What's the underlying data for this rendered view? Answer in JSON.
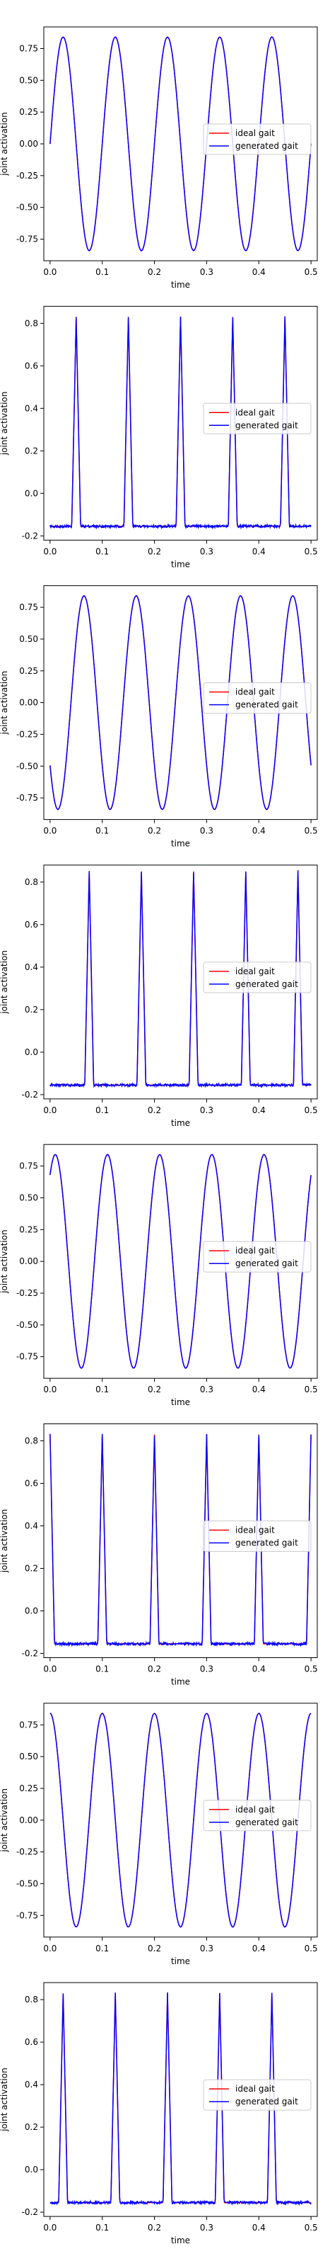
{
  "figure": {
    "xlabel": "time",
    "ylabel": "joint activation"
  },
  "legend": {
    "ideal": "ideal gait",
    "generated": "generated gait"
  },
  "colors": {
    "ideal": "#ff0000",
    "generated": "#0000ff"
  },
  "chart_data": [
    {
      "type": "line",
      "wave": "sine",
      "phase": 0.0,
      "amp": 0.84,
      "title": "",
      "xlabel": "time",
      "ylabel": "joint activation",
      "xlim": [
        -0.012,
        0.512
      ],
      "ylim": [
        -0.92,
        0.92
      ],
      "xticks": [
        "0.0",
        "0.1",
        "0.2",
        "0.3",
        "0.4",
        "0.5"
      ],
      "yticks": [
        "0.75",
        "0.50",
        "0.25",
        "0.00",
        "-0.25",
        "-0.50",
        "-0.75"
      ],
      "legend_position": "center-right",
      "series": [
        {
          "name": "ideal gait"
        },
        {
          "name": "generated gait"
        }
      ]
    },
    {
      "type": "line",
      "wave": "pulse",
      "centers": [
        0.05,
        0.15,
        0.25,
        0.35,
        0.45
      ],
      "peak": 0.83,
      "base": -0.155,
      "title": "",
      "xlabel": "time",
      "ylabel": "joint activation",
      "xlim": [
        -0.012,
        0.512
      ],
      "ylim": [
        -0.22,
        0.88
      ],
      "xticks": [
        "0.0",
        "0.1",
        "0.2",
        "0.3",
        "0.4",
        "0.5"
      ],
      "yticks": [
        "0.8",
        "0.6",
        "0.4",
        "0.2",
        "0.0",
        "-0.2"
      ],
      "legend_position": "center-right",
      "series": [
        {
          "name": "ideal gait"
        },
        {
          "name": "generated gait"
        }
      ]
    },
    {
      "type": "line",
      "wave": "sine",
      "phase": 0.04,
      "amp": 0.84,
      "title": "",
      "xlabel": "time",
      "ylabel": "joint activation",
      "xlim": [
        -0.012,
        0.512
      ],
      "ylim": [
        -0.92,
        0.92
      ],
      "xticks": [
        "0.0",
        "0.1",
        "0.2",
        "0.3",
        "0.4",
        "0.5"
      ],
      "yticks": [
        "0.75",
        "0.50",
        "0.25",
        "0.00",
        "-0.25",
        "-0.50",
        "-0.75"
      ],
      "legend_position": "center-right",
      "series": [
        {
          "name": "ideal gait"
        },
        {
          "name": "generated gait"
        }
      ]
    },
    {
      "type": "line",
      "wave": "pulse",
      "centers": [
        0.075,
        0.175,
        0.275,
        0.375,
        0.475
      ],
      "peak": 0.85,
      "base": -0.155,
      "title": "",
      "xlabel": "time",
      "ylabel": "joint activation",
      "xlim": [
        -0.012,
        0.512
      ],
      "ylim": [
        -0.22,
        0.88
      ],
      "xticks": [
        "0.0",
        "0.1",
        "0.2",
        "0.3",
        "0.4",
        "0.5"
      ],
      "yticks": [
        "0.8",
        "0.6",
        "0.4",
        "0.2",
        "0.0",
        "-0.2"
      ],
      "legend_position": "center-right",
      "series": [
        {
          "name": "ideal gait"
        },
        {
          "name": "generated gait"
        }
      ]
    },
    {
      "type": "line",
      "wave": "sine",
      "phase": -0.015,
      "amp": 0.84,
      "title": "",
      "xlabel": "time",
      "ylabel": "joint activation",
      "xlim": [
        -0.012,
        0.512
      ],
      "ylim": [
        -0.92,
        0.92
      ],
      "xticks": [
        "0.0",
        "0.1",
        "0.2",
        "0.3",
        "0.4",
        "0.5"
      ],
      "yticks": [
        "0.75",
        "0.50",
        "0.25",
        "0.00",
        "-0.25",
        "-0.50",
        "-0.75"
      ],
      "legend_position": "center-right",
      "series": [
        {
          "name": "ideal gait"
        },
        {
          "name": "generated gait"
        }
      ]
    },
    {
      "type": "line",
      "wave": "pulse",
      "centers": [
        0.0,
        0.1,
        0.2,
        0.3,
        0.4,
        0.5
      ],
      "peak": 0.83,
      "base": -0.155,
      "title": "",
      "xlabel": "time",
      "ylabel": "joint activation",
      "xlim": [
        -0.012,
        0.512
      ],
      "ylim": [
        -0.22,
        0.88
      ],
      "xticks": [
        "0.0",
        "0.1",
        "0.2",
        "0.3",
        "0.4",
        "0.5"
      ],
      "yticks": [
        "0.8",
        "0.6",
        "0.4",
        "0.2",
        "0.0",
        "-0.2"
      ],
      "legend_position": "center-right",
      "series": [
        {
          "name": "ideal gait"
        },
        {
          "name": "generated gait"
        }
      ]
    },
    {
      "type": "line",
      "wave": "sine",
      "phase": 0.075,
      "amp": 0.84,
      "title": "",
      "xlabel": "time",
      "ylabel": "joint activation",
      "xlim": [
        -0.012,
        0.512
      ],
      "ylim": [
        -0.92,
        0.92
      ],
      "xticks": [
        "0.0",
        "0.1",
        "0.2",
        "0.3",
        "0.4",
        "0.5"
      ],
      "yticks": [
        "0.75",
        "0.50",
        "0.25",
        "0.00",
        "-0.25",
        "-0.50",
        "-0.75"
      ],
      "legend_position": "center-right",
      "series": [
        {
          "name": "ideal gait"
        },
        {
          "name": "generated gait"
        }
      ]
    },
    {
      "type": "line",
      "wave": "pulse",
      "centers": [
        0.025,
        0.125,
        0.225,
        0.325,
        0.425
      ],
      "peak": 0.83,
      "base": -0.155,
      "title": "",
      "xlabel": "time",
      "ylabel": "joint activation",
      "xlim": [
        -0.012,
        0.512
      ],
      "ylim": [
        -0.22,
        0.88
      ],
      "xticks": [
        "0.0",
        "0.1",
        "0.2",
        "0.3",
        "0.4",
        "0.5"
      ],
      "yticks": [
        "0.8",
        "0.6",
        "0.4",
        "0.2",
        "0.0",
        "-0.2"
      ],
      "legend_position": "center-right",
      "series": [
        {
          "name": "ideal gait"
        },
        {
          "name": "generated gait"
        }
      ]
    }
  ]
}
